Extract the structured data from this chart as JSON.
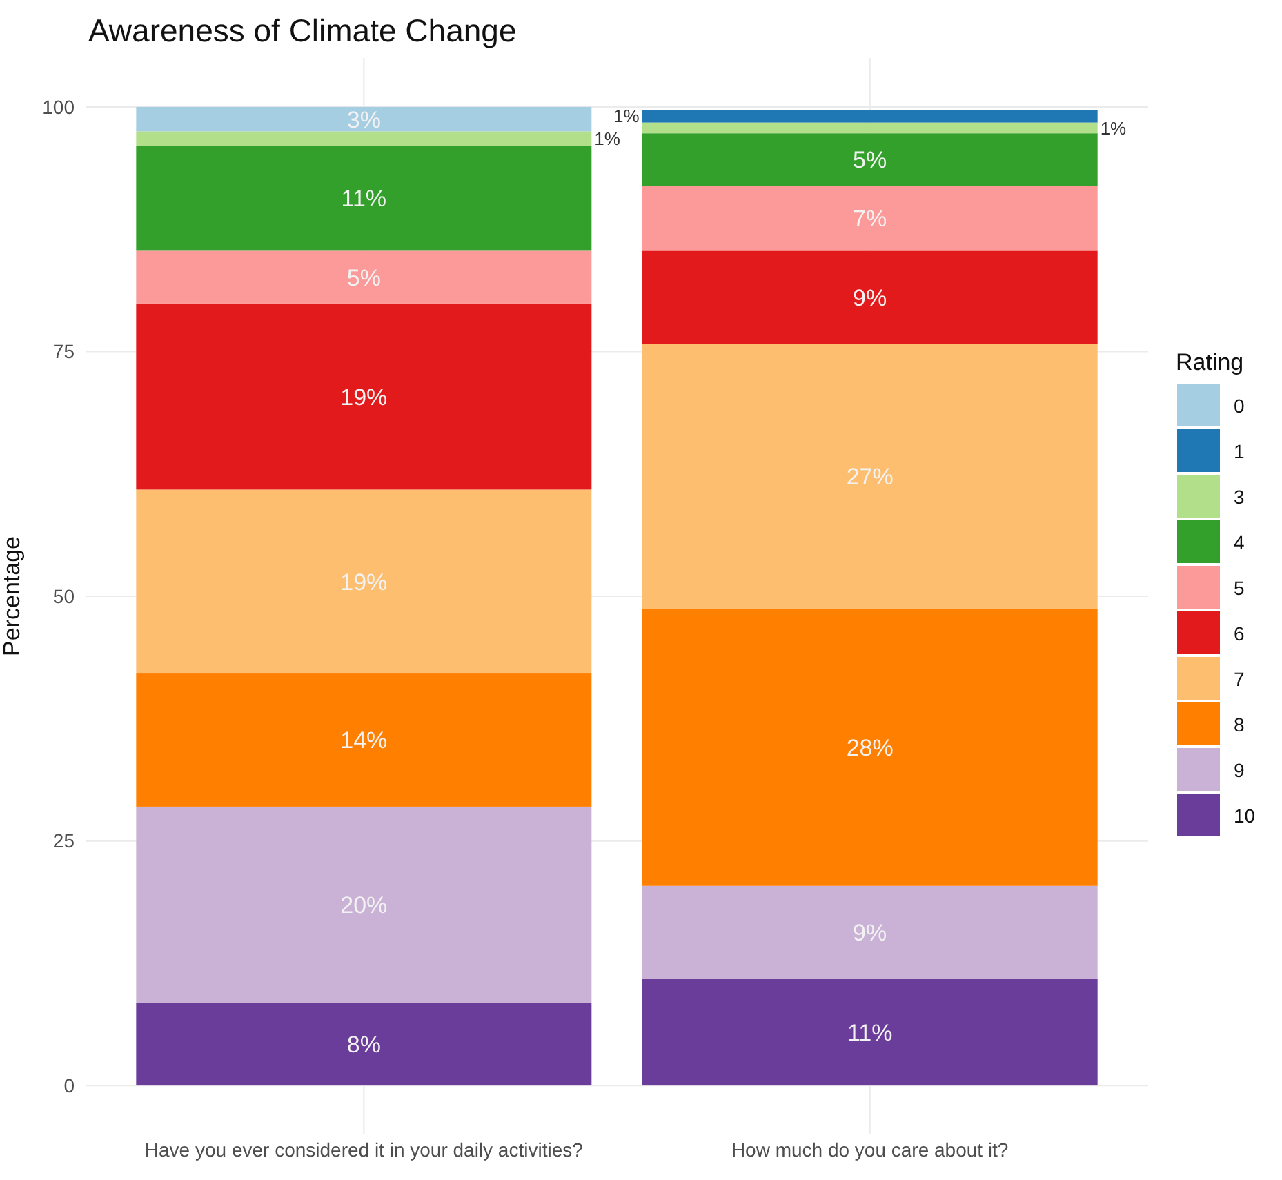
{
  "chart_data": {
    "type": "bar",
    "stacked": true,
    "title": "Awareness of Climate Change",
    "ylabel": "Percentage",
    "legend_title": "Rating",
    "legend": "right",
    "grid": true,
    "categories": [
      "Have you ever considered it in your daily activities?",
      "How much do you care about it?"
    ],
    "ylim": [
      -5,
      105
    ],
    "yticks": [
      0,
      25,
      50,
      75,
      100
    ],
    "series": [
      {
        "name": "10",
        "color": "#6a3d9a",
        "values": [
          8.4,
          10.9
        ],
        "value_labels": [
          "8%",
          "11%"
        ]
      },
      {
        "name": "9",
        "color": "#cab2d6",
        "values": [
          20.1,
          9.5
        ],
        "value_labels": [
          "20%",
          "9%"
        ]
      },
      {
        "name": "8",
        "color": "#ff7f00",
        "values": [
          13.6,
          28.3
        ],
        "value_labels": [
          "14%",
          "28%"
        ]
      },
      {
        "name": "7",
        "color": "#fdbf6f",
        "values": [
          18.8,
          27.1
        ],
        "value_labels": [
          "19%",
          "27%"
        ]
      },
      {
        "name": "6",
        "color": "#e31a1c",
        "values": [
          19.0,
          9.5
        ],
        "value_labels": [
          "19%",
          "9%"
        ]
      },
      {
        "name": "5",
        "color": "#fb9a99",
        "values": [
          5.4,
          6.6
        ],
        "value_labels": [
          "5%",
          "7%"
        ]
      },
      {
        "name": "4",
        "color": "#33a02c",
        "values": [
          10.7,
          5.4
        ],
        "value_labels": [
          "11%",
          "5%"
        ]
      },
      {
        "name": "3",
        "color": "#b2df8a",
        "values": [
          1.5,
          1.1
        ],
        "value_labels": [
          "1%",
          "1%"
        ]
      },
      {
        "name": "1",
        "color": "#1f78b4",
        "values": [
          null,
          1.3
        ],
        "value_labels": [
          null,
          "1%"
        ]
      },
      {
        "name": "0",
        "color": "#a6cee3",
        "values": [
          2.5,
          null
        ],
        "value_labels": [
          "3%",
          null
        ]
      }
    ]
  }
}
